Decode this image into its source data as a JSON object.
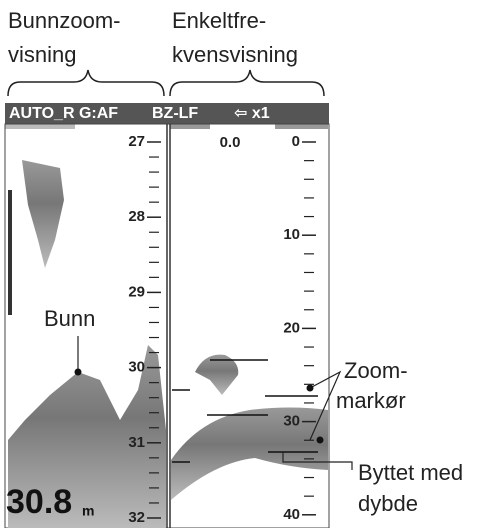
{
  "labels": {
    "left_panel": [
      "Bunnzoom-",
      "visning"
    ],
    "right_panel": [
      "Enkeltfre-",
      "kvensvisning"
    ]
  },
  "status_bar": {
    "mode": "AUTO_R G:AF",
    "display": "BZ-LF",
    "zoom": "⇦ x1"
  },
  "left_scale": [
    27,
    28,
    29,
    30,
    31,
    32
  ],
  "right_scale": [
    0,
    10,
    20,
    30,
    40
  ],
  "right_offset": "0.0",
  "depth": {
    "value": "30.8",
    "unit": "m"
  },
  "callouts": {
    "bottom": "Bunn",
    "zoom_marker": [
      "Zoom-",
      "markør"
    ],
    "swapped": [
      "Byttet med",
      "dybde"
    ]
  }
}
